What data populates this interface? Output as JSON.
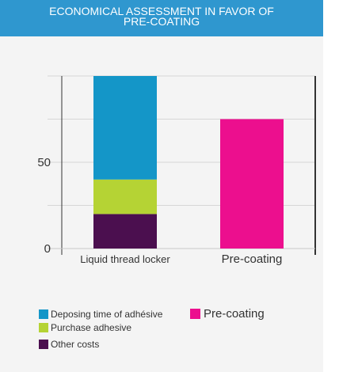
{
  "header": {
    "title": "ECONOMICAL ASSESSMENT IN FAVOR OF\nPRE-COATING"
  },
  "chart_data": {
    "type": "bar",
    "stacked": true,
    "categories": [
      "Liquid thread locker",
      "Pre-coating"
    ],
    "series": [
      {
        "name": "Other costs",
        "color": "#4b0f4f",
        "values": [
          20,
          0
        ]
      },
      {
        "name": "Purchase adhesive",
        "color": "#b5d334",
        "values": [
          20,
          0
        ]
      },
      {
        "name": "Deposing time of adhésive",
        "color": "#1496c8",
        "values": [
          60,
          0
        ]
      },
      {
        "name": "Pre-coating",
        "color": "#ec0f8e",
        "values": [
          0,
          75
        ]
      }
    ],
    "yticks": [
      0,
      50
    ],
    "ylim": [
      0,
      100
    ],
    "grid": true,
    "legend_position": "bottom"
  },
  "legend": [
    {
      "label": "Deposing time of adhésive",
      "color": "#1496c8"
    },
    {
      "label": "Purchase adhesive",
      "color": "#b5d334"
    },
    {
      "label": "Other costs",
      "color": "#4b0f4f"
    },
    {
      "label": "Pre-coating",
      "color": "#ec0f8e"
    }
  ]
}
